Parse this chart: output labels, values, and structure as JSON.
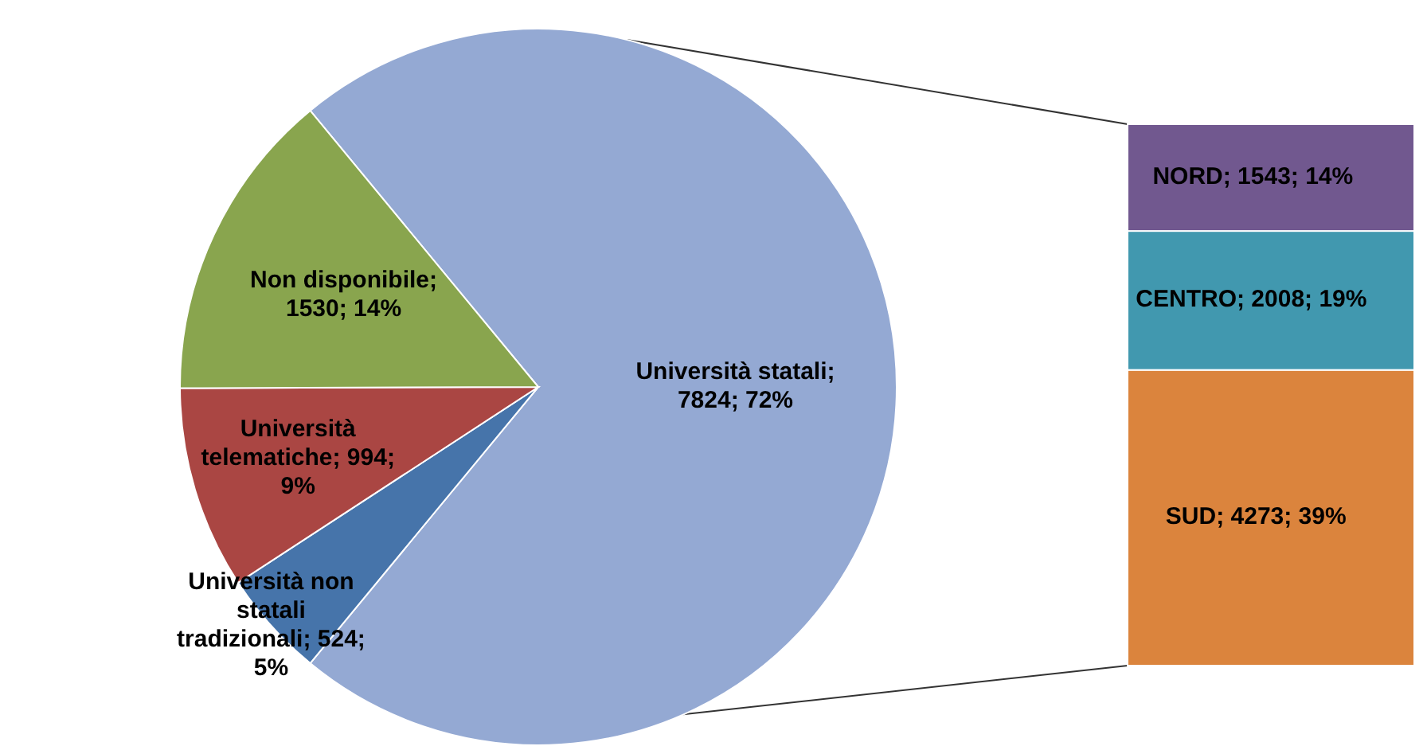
{
  "chart_data": [
    {
      "type": "pie",
      "categories": [
        "Università statali",
        "Università non statali tradizionali",
        "Università telematiche",
        "Non disponibile"
      ],
      "values": [
        7824,
        524,
        994,
        1530
      ],
      "colors": [
        "#94a9d3",
        "#4674aa",
        "#aa4643",
        "#89a54e"
      ],
      "value_labels": [
        "; 7824; 72%",
        "; 524; 5%",
        "; 994; 9%",
        "; 1530; 14%"
      ]
    },
    {
      "type": "bar",
      "stacked": true,
      "categories": [
        null
      ],
      "series": [
        {
          "name": "SUD",
          "color": "#db843d",
          "values": [
            4273
          ],
          "value_labels": [
            "; 4273; 39%"
          ]
        },
        {
          "name": "CENTRO",
          "color": "#4198af",
          "values": [
            2008
          ],
          "value_labels": [
            "; 2008; 19%"
          ]
        },
        {
          "name": "NORD",
          "color": "#71588f",
          "values": [
            1543
          ],
          "value_labels": [
            "; 1543; 14%"
          ]
        }
      ]
    }
  ]
}
